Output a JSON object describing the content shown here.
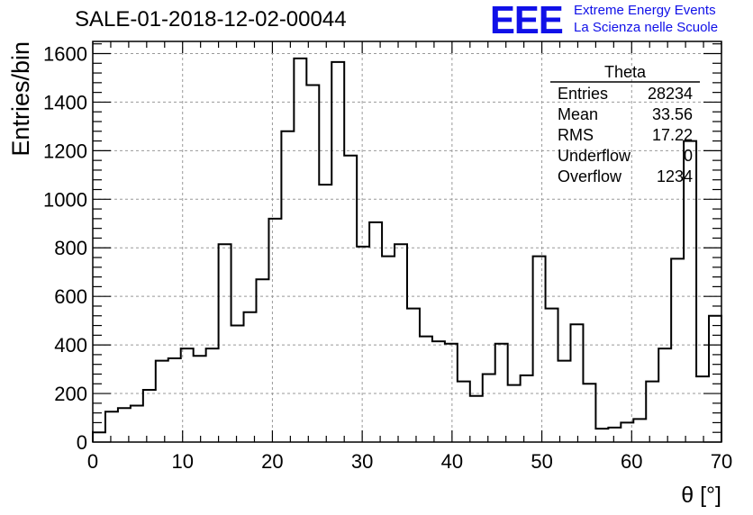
{
  "header": {
    "run_title": "SALE-01-2018-12-02-00044",
    "logo_text": "EEE",
    "logo_line1": "Extreme Energy Events",
    "logo_line2": "La Scienza nelle Scuole",
    "brand_color": "#1010e8"
  },
  "chart_data": {
    "type": "histogram",
    "title": "SALE-01-2018-12-02-00044",
    "xlabel": "θ [°]",
    "ylabel": "Entries/bin",
    "xlim": [
      0,
      70
    ],
    "ylim": [
      0,
      1650
    ],
    "grid": true,
    "x_ticks": [
      0,
      10,
      20,
      30,
      40,
      50,
      60,
      70
    ],
    "y_ticks": [
      0,
      200,
      400,
      600,
      800,
      1000,
      1200,
      1400,
      1600
    ],
    "bin_width": 1.4,
    "bin_edges_start": 0,
    "values": [
      40,
      125,
      140,
      150,
      215,
      335,
      345,
      385,
      355,
      385,
      815,
      480,
      535,
      670,
      920,
      1280,
      1580,
      1470,
      1060,
      1565,
      1180,
      805,
      905,
      765,
      815,
      550,
      435,
      415,
      405,
      250,
      190,
      280,
      405,
      235,
      275,
      765,
      550,
      335,
      485,
      240,
      55,
      60,
      80,
      95,
      250,
      385,
      755,
      1240,
      270,
      520
    ],
    "stats_box": {
      "title": "Theta",
      "rows": [
        {
          "label": "Entries",
          "value": "28234"
        },
        {
          "label": "Mean",
          "value": "33.56"
        },
        {
          "label": "RMS",
          "value": "17.22"
        },
        {
          "label": "Underflow",
          "value": "0"
        },
        {
          "label": "Overflow",
          "value": "1234"
        }
      ]
    }
  }
}
